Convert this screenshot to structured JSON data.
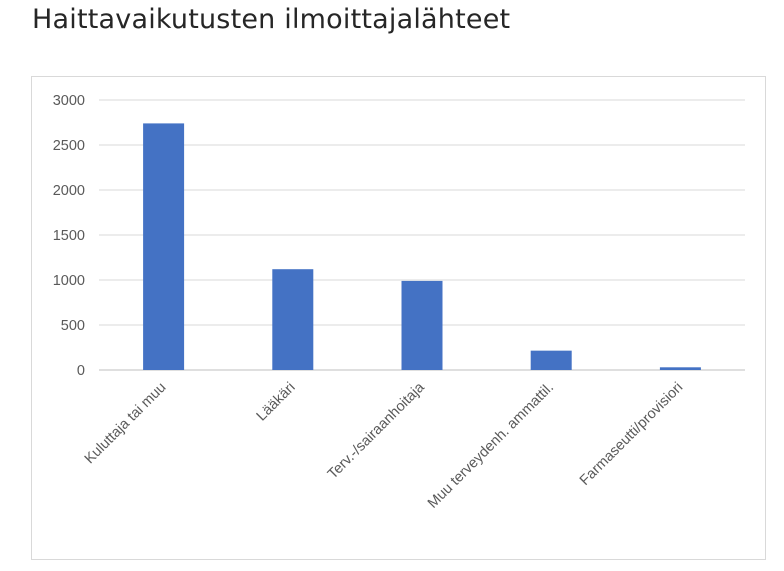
{
  "title": "Haittavaikutusten ilmoittajalähteet",
  "chart_data": {
    "type": "bar",
    "title": "",
    "xlabel": "",
    "ylabel": "",
    "categories": [
      "Kuluttaja tai muu",
      "Lääkäri",
      "Terv.-/sairaanhoitaja",
      "Muu terveydenh. ammattil.",
      "Farmaseutti/provisiori"
    ],
    "values": [
      2740,
      1120,
      990,
      215,
      30
    ],
    "ylim": [
      0,
      3000
    ],
    "yticks": [
      0,
      500,
      1000,
      1500,
      2000,
      2500,
      3000
    ],
    "ytick_labels": [
      "0",
      "500",
      "1000",
      "1500",
      "2000",
      "2500",
      "3000"
    ],
    "grid": true,
    "legend": "none",
    "bar_color": "#4472c4"
  }
}
